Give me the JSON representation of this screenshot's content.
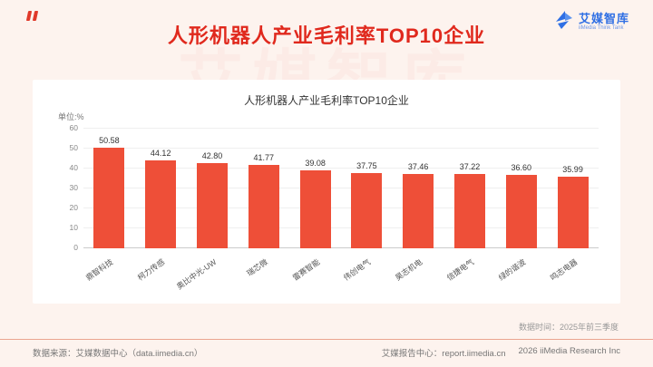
{
  "header": {
    "title": "人形机器人产业毛利率TOP10企业",
    "brand": "艾媒智库",
    "brand_sub": "iiMedia Think Tank",
    "watermark": "艾媒智库"
  },
  "chart_data": {
    "type": "bar",
    "title": "人形机器人产业毛利率TOP10企业",
    "unit_label": "单位:%",
    "categories": [
      "鼎智科技",
      "柯力传感",
      "奥比中光-UW",
      "瑞芯微",
      "雷赛智能",
      "伟创电气",
      "昊志机电",
      "信捷电气",
      "绿的谐波",
      "鸣志电器"
    ],
    "values": [
      50.58,
      44.12,
      42.8,
      41.77,
      39.08,
      37.75,
      37.46,
      37.22,
      36.6,
      35.99
    ],
    "ylim": [
      0,
      60
    ],
    "yticks": [
      0,
      10,
      20,
      30,
      40,
      50,
      60
    ],
    "bar_color": "#ee4f38",
    "grid": true,
    "legend": "none",
    "xlabel": "",
    "ylabel": ""
  },
  "footer": {
    "data_time": "数据时间：2025年前三季度",
    "source": "数据来源：艾媒数据中心（data.iimedia.cn）",
    "report_center": "艾媒报告中心：report.iimedia.cn",
    "copyright": "2026 iiMedia Research Inc"
  },
  "colors": {
    "title_red": "#e0291d",
    "bar_red": "#ee4f38",
    "brand_blue": "#2f6fe4",
    "background": "#fdf3ee"
  }
}
